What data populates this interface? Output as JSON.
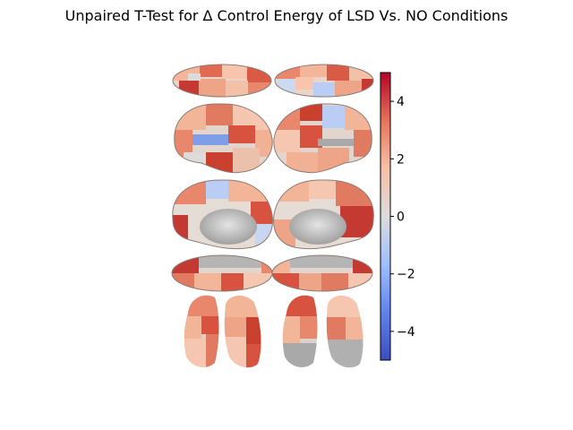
{
  "title": "Unpaired T-Test for Δ Control Energy of LSD Vs. NO Conditions",
  "chart_data": {
    "type": "heatmap",
    "title": "Unpaired T-Test for Δ Control Energy of LSD Vs. NO Conditions",
    "colormap": "coolwarm",
    "colorbar": {
      "range": [
        -5,
        5
      ],
      "ticks": [
        4,
        2,
        0,
        -2,
        -4
      ],
      "tick_labels": [
        "4",
        "2",
        "0",
        "−2",
        "−4"
      ],
      "colors": [
        "#3b4cc0",
        "#7396f5",
        "#b1cbfc",
        "#dddcdc",
        "#f4c6af",
        "#e8795f",
        "#b40426"
      ]
    },
    "brain_views": [
      "superior",
      "lateral",
      "medial",
      "inferior",
      "posterior"
    ],
    "hemispheres": [
      "left",
      "right"
    ]
  }
}
